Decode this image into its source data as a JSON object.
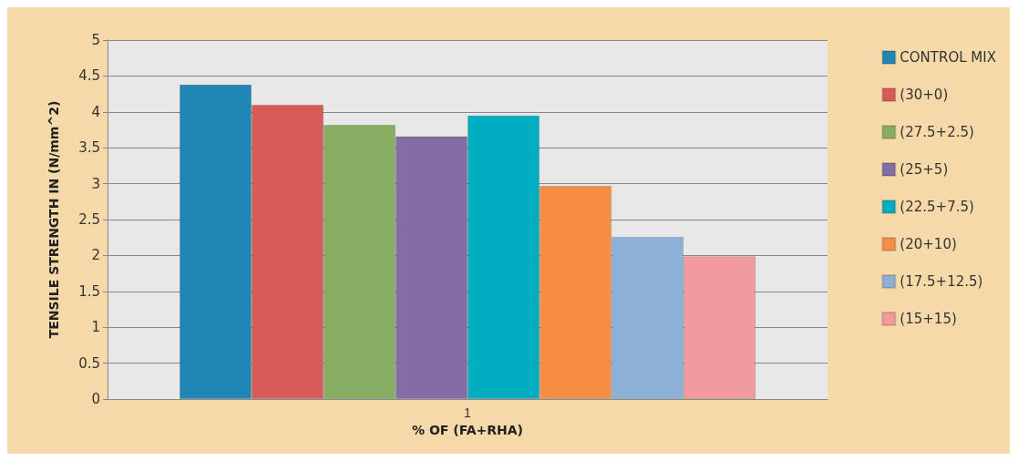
{
  "chart_data": {
    "type": "bar",
    "xlabel": "% OF (FA+RHA)",
    "ylabel": "TENSILE STRENGTH IN (N/mm^2)",
    "categories": [
      "1"
    ],
    "series": [
      {
        "name": "CONTROL MIX",
        "color": "#1f86b5",
        "values": [
          4.38
        ]
      },
      {
        "name": "(30+0)",
        "color": "#d95b57",
        "values": [
          4.1
        ]
      },
      {
        "name": "(27.5+2.5)",
        "color": "#86ae60",
        "values": [
          3.82
        ]
      },
      {
        "name": "(25+5)",
        "color": "#846da4",
        "values": [
          3.66
        ]
      },
      {
        "name": "(22.5+7.5)",
        "color": "#00adc1",
        "values": [
          3.95
        ]
      },
      {
        "name": "(20+10)",
        "color": "#f68d44",
        "values": [
          2.97
        ]
      },
      {
        "name": "(17.5+12.5)",
        "color": "#8db0d7",
        "values": [
          2.26
        ]
      },
      {
        "name": "(15+15)",
        "color": "#f29b9c",
        "values": [
          1.99
        ]
      }
    ],
    "ylim": [
      0,
      5
    ],
    "yticks": [
      0,
      0.5,
      1,
      1.5,
      2,
      2.5,
      3,
      3.5,
      4,
      4.5,
      5
    ],
    "grid": "y",
    "legend": "right"
  }
}
